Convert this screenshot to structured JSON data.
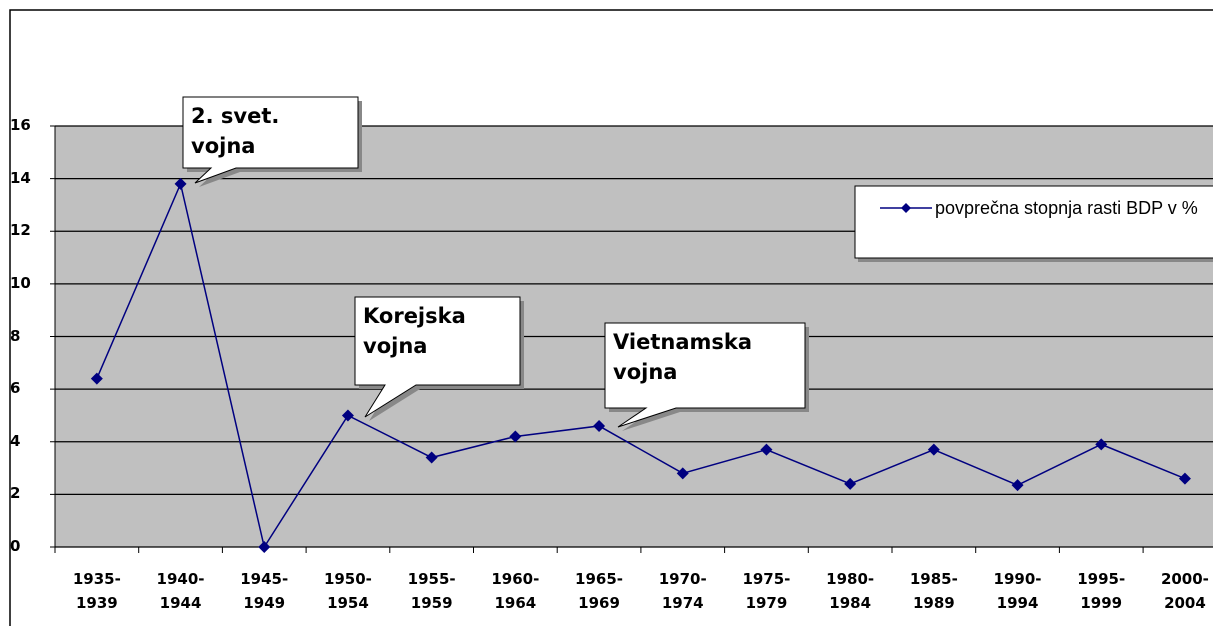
{
  "chart_data": {
    "type": "line",
    "categories": [
      "1935-1939",
      "1940-1944",
      "1945-1949",
      "1950-1954",
      "1955-1959",
      "1960-1964",
      "1965-1969",
      "1970-1974",
      "1975-1979",
      "1980-1984",
      "1985-1989",
      "1990-1994",
      "1995-1999",
      "2000-2004"
    ],
    "series": [
      {
        "name": "povprečna stopnja rasti BDP v %",
        "color": "#000080",
        "values": [
          6.4,
          13.8,
          0,
          5.0,
          3.4,
          4.2,
          4.6,
          2.8,
          3.7,
          2.4,
          3.7,
          2.35,
          3.9,
          2.6
        ]
      }
    ],
    "ylim": [
      0,
      16
    ],
    "yticks": [
      0,
      2,
      4,
      6,
      8,
      10,
      12,
      14,
      16
    ],
    "grid": true,
    "legend": "right",
    "annotations": [
      "2. svet. vojna",
      "Korejska vojna",
      "Vietnamska vojna"
    ]
  }
}
